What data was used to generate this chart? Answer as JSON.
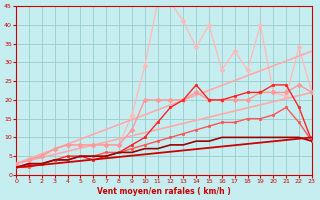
{
  "xlabel": "Vent moyen/en rafales ( km/h )",
  "xlim": [
    0,
    23
  ],
  "ylim": [
    0,
    45
  ],
  "yticks": [
    0,
    5,
    10,
    15,
    20,
    25,
    30,
    35,
    40,
    45
  ],
  "xticks": [
    0,
    1,
    2,
    3,
    4,
    5,
    6,
    7,
    8,
    9,
    10,
    11,
    12,
    13,
    14,
    15,
    16,
    17,
    18,
    19,
    20,
    21,
    22,
    23
  ],
  "bg_color": "#c6eef0",
  "grid_color": "#99cccc",
  "series": [
    {
      "x": [
        0,
        1,
        2,
        3,
        4,
        5,
        6,
        7,
        8,
        9,
        10,
        11,
        12,
        13,
        14,
        15,
        16,
        17,
        18,
        19,
        20,
        21,
        22,
        23
      ],
      "y": [
        3,
        4,
        5,
        7,
        8,
        8,
        8,
        8,
        8,
        16,
        29,
        46,
        46,
        41,
        34,
        40,
        28,
        33,
        28,
        40,
        22,
        21,
        34,
        22
      ],
      "color": "#ffbbbb",
      "lw": 1.0,
      "marker": "D",
      "ms": 2.5,
      "zorder": 2
    },
    {
      "x": [
        0,
        23
      ],
      "y": [
        3,
        33
      ],
      "color": "#ffaaaa",
      "lw": 1.2,
      "marker": null,
      "ms": 0,
      "zorder": 3
    },
    {
      "x": [
        0,
        23
      ],
      "y": [
        3,
        22
      ],
      "color": "#ffaaaa",
      "lw": 1.2,
      "marker": null,
      "ms": 0,
      "zorder": 3
    },
    {
      "x": [
        0,
        1,
        2,
        3,
        4,
        5,
        6,
        7,
        8,
        9,
        10,
        11,
        12,
        13,
        14,
        15,
        16,
        17,
        18,
        19,
        20,
        21,
        22,
        23
      ],
      "y": [
        3,
        4,
        5,
        7,
        8,
        8,
        8,
        8,
        8,
        12,
        20,
        20,
        20,
        20,
        22,
        20,
        20,
        20,
        20,
        22,
        22,
        22,
        24,
        22
      ],
      "color": "#ff9999",
      "lw": 1.0,
      "marker": "D",
      "ms": 2.5,
      "zorder": 3
    },
    {
      "x": [
        0,
        1,
        2,
        3,
        4,
        5,
        6,
        7,
        8,
        9,
        10,
        11,
        12,
        13,
        14,
        15,
        16,
        17,
        18,
        19,
        20,
        21,
        22,
        23
      ],
      "y": [
        2,
        3,
        3,
        4,
        4,
        5,
        5,
        5,
        6,
        6,
        7,
        7,
        8,
        8,
        9,
        9,
        10,
        10,
        10,
        10,
        10,
        10,
        10,
        9
      ],
      "color": "#990000",
      "lw": 1.2,
      "marker": null,
      "ms": 0,
      "zorder": 5
    },
    {
      "x": [
        0,
        1,
        2,
        3,
        4,
        5,
        6,
        7,
        8,
        9,
        10,
        11,
        12,
        13,
        14,
        15,
        16,
        17,
        18,
        19,
        20,
        21,
        22,
        23
      ],
      "y": [
        2,
        3,
        3,
        4,
        5,
        5,
        4,
        5,
        6,
        8,
        10,
        14,
        18,
        20,
        24,
        20,
        20,
        21,
        22,
        22,
        24,
        24,
        18,
        9
      ],
      "color": "#ff2222",
      "lw": 1.0,
      "marker": "s",
      "ms": 2,
      "zorder": 4
    },
    {
      "x": [
        0,
        1,
        2,
        3,
        4,
        5,
        6,
        7,
        8,
        9,
        10,
        11,
        12,
        13,
        14,
        15,
        16,
        17,
        18,
        19,
        20,
        21,
        22,
        23
      ],
      "y": [
        2,
        2,
        3,
        4,
        4,
        5,
        5,
        6,
        6,
        7,
        8,
        9,
        10,
        11,
        12,
        13,
        14,
        14,
        15,
        15,
        16,
        18,
        14,
        9
      ],
      "color": "#ff5555",
      "lw": 1.0,
      "marker": "s",
      "ms": 2,
      "zorder": 4
    },
    {
      "x": [
        0,
        23
      ],
      "y": [
        2,
        10
      ],
      "color": "#cc0000",
      "lw": 1.3,
      "marker": null,
      "ms": 0,
      "zorder": 5
    }
  ]
}
